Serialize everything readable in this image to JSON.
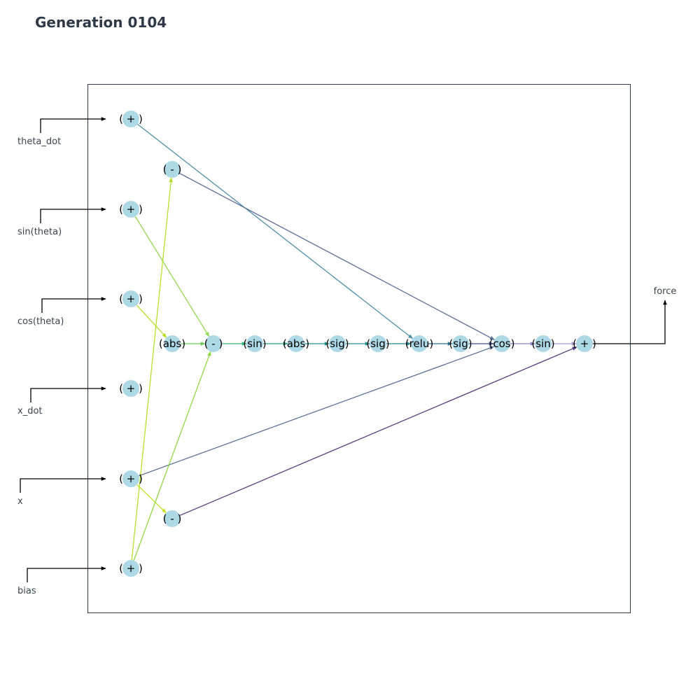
{
  "title": "Generation 0104",
  "colors": {
    "node_fill": "#add8e6",
    "frame": "#2f3a48",
    "title": "#2f3a48",
    "label": "#3a4550"
  },
  "inputs": [
    {
      "id": "in_theta_dot",
      "label": "theta_dot",
      "node": "n1"
    },
    {
      "id": "in_sin_theta",
      "label": "sin(theta)",
      "node": "n3"
    },
    {
      "id": "in_cos_theta",
      "label": "cos(theta)",
      "node": "n4"
    },
    {
      "id": "in_x_dot",
      "label": "x_dot",
      "node": "n5"
    },
    {
      "id": "in_x",
      "label": "x",
      "node": "n6"
    },
    {
      "id": "in_bias",
      "label": "bias",
      "node": "n8"
    }
  ],
  "output": {
    "label": "force",
    "node": "n19"
  },
  "nodes": [
    {
      "id": "n1",
      "label": "( + )"
    },
    {
      "id": "n2",
      "label": "( - )"
    },
    {
      "id": "n3",
      "label": "( + )"
    },
    {
      "id": "n4",
      "label": "( + )"
    },
    {
      "id": "n5",
      "label": "( + )"
    },
    {
      "id": "n6",
      "label": "( + )"
    },
    {
      "id": "n7",
      "label": "( - )"
    },
    {
      "id": "n8",
      "label": "( + )"
    },
    {
      "id": "n9",
      "label": "(abs)"
    },
    {
      "id": "n10",
      "label": "( - )"
    },
    {
      "id": "n11",
      "label": "(sin)"
    },
    {
      "id": "n12",
      "label": "(abs)"
    },
    {
      "id": "n13",
      "label": "(sig)"
    },
    {
      "id": "n14",
      "label": "(sig)"
    },
    {
      "id": "n15",
      "label": "(relu)"
    },
    {
      "id": "n16",
      "label": "(sig)"
    },
    {
      "id": "n17",
      "label": "(cos)"
    },
    {
      "id": "n18",
      "label": "(sin)"
    },
    {
      "id": "n19",
      "label": "( + )"
    }
  ],
  "edges": [
    {
      "from": "n1",
      "to": "n15",
      "color": "#4f8fa8"
    },
    {
      "from": "n2",
      "to": "n17",
      "color": "#5a6e96"
    },
    {
      "from": "n3",
      "to": "n10",
      "color": "#93d852"
    },
    {
      "from": "n4",
      "to": "n9",
      "color": "#b8de2a"
    },
    {
      "from": "n6",
      "to": "n17",
      "color": "#5d7299"
    },
    {
      "from": "n6",
      "to": "n7",
      "color": "#c7e020"
    },
    {
      "from": "n7",
      "to": "n19",
      "color": "#5a3a7e"
    },
    {
      "from": "n8",
      "to": "n2",
      "color": "#b5de2b"
    },
    {
      "from": "n8",
      "to": "n10",
      "color": "#90d743"
    },
    {
      "from": "n9",
      "to": "n10",
      "color": "#6ccd5a"
    },
    {
      "from": "n10",
      "to": "n11",
      "color": "#35b779"
    },
    {
      "from": "n11",
      "to": "n12",
      "color": "#2a9d8c"
    },
    {
      "from": "n12",
      "to": "n13",
      "color": "#25928d"
    },
    {
      "from": "n13",
      "to": "n14",
      "color": "#21908d"
    },
    {
      "from": "n14",
      "to": "n15",
      "color": "#22868d"
    },
    {
      "from": "n15",
      "to": "n16",
      "color": "#2c728e"
    },
    {
      "from": "n16",
      "to": "n17",
      "color": "#3b528b"
    },
    {
      "from": "n17",
      "to": "n18",
      "color": "#8f7fbf"
    },
    {
      "from": "n18",
      "to": "n19",
      "color": "#a79ad0"
    }
  ]
}
